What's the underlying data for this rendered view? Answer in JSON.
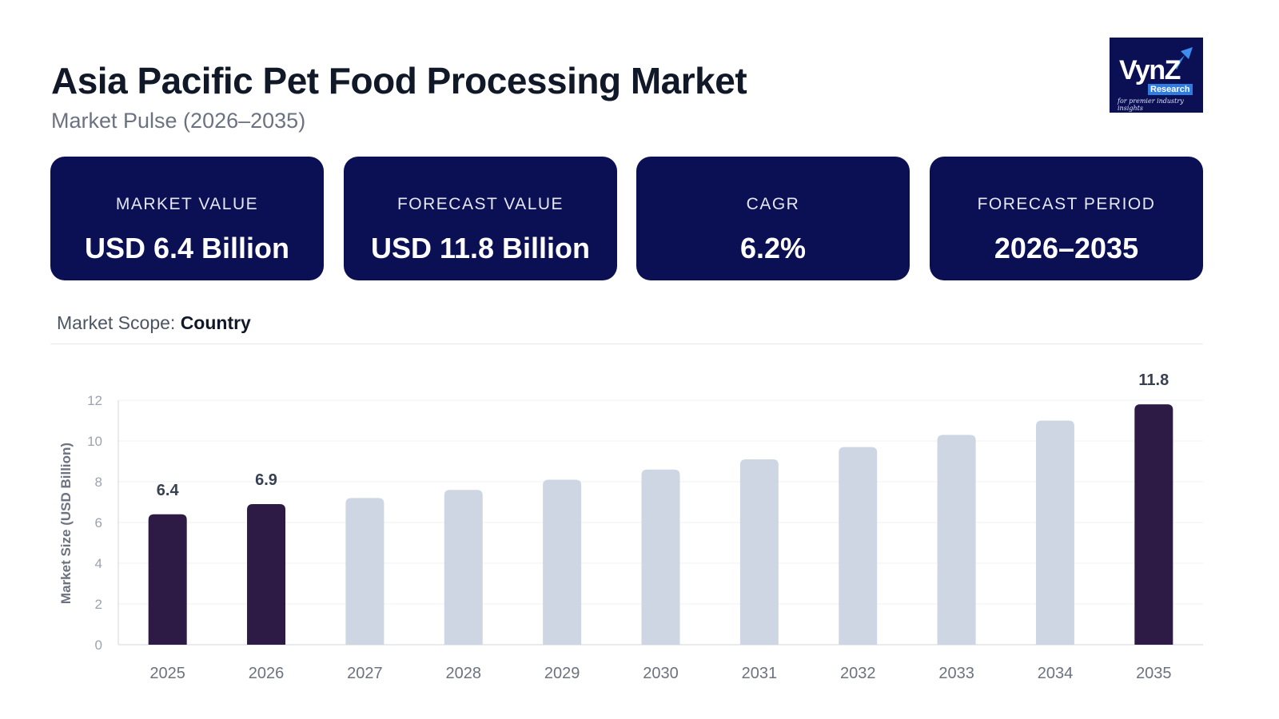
{
  "header": {
    "title": "Asia Pacific Pet Food Processing Market",
    "subtitle": "Market Pulse (2026–2035)"
  },
  "logo": {
    "main": "VynZ",
    "sub": "Research",
    "tagline": "for premier industry insights",
    "icon": "arrow-up-right-icon"
  },
  "cards": [
    {
      "label": "MARKET VALUE",
      "value": "USD 6.4 Billion"
    },
    {
      "label": "FORECAST VALUE",
      "value": "USD 11.8 Billion"
    },
    {
      "label": "CAGR",
      "value": "6.2%"
    },
    {
      "label": "FORECAST PERIOD",
      "value": "2026–2035"
    }
  ],
  "scope": {
    "label": "Market Scope:",
    "value": "Country"
  },
  "colors": {
    "navy": "#0b1055",
    "highlight_bar": "#2d1b45",
    "forecast_bar": "#cdd6e2"
  },
  "chart_data": {
    "type": "bar",
    "categories": [
      "2025",
      "2026",
      "2027",
      "2028",
      "2029",
      "2030",
      "2031",
      "2032",
      "2033",
      "2034",
      "2035"
    ],
    "values": [
      6.4,
      6.9,
      7.2,
      7.6,
      8.1,
      8.6,
      9.1,
      9.7,
      10.3,
      11.0,
      11.8
    ],
    "highlighted": [
      true,
      true,
      false,
      false,
      false,
      false,
      false,
      false,
      false,
      false,
      true
    ],
    "data_labels": [
      "6.4",
      "6.9",
      "",
      "",
      "",
      "",
      "",
      "",
      "",
      "",
      "11.8"
    ],
    "ylabel": "Market Size (USD Billion)",
    "xlabel": "",
    "ylim": [
      0,
      12
    ],
    "yticks": [
      0,
      2,
      4,
      6,
      8,
      10,
      12
    ],
    "grid": true
  }
}
